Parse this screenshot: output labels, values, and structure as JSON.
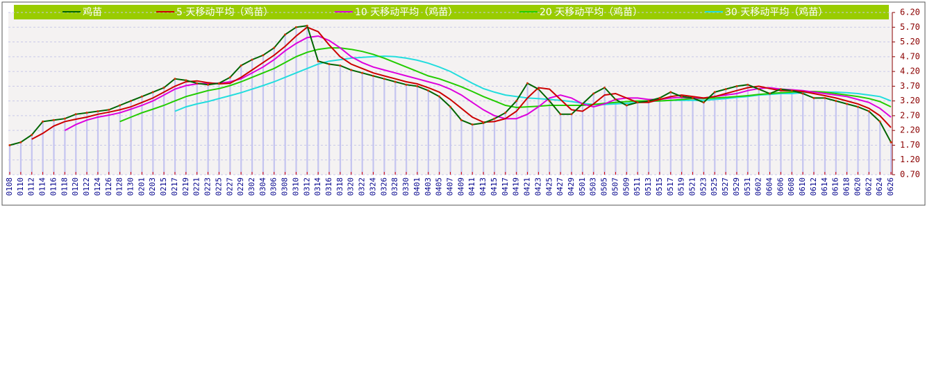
{
  "chart_data": {
    "type": "line",
    "categories": [
      "0108",
      "0110",
      "0112",
      "0114",
      "0116",
      "0118",
      "0120",
      "0122",
      "0124",
      "0126",
      "0128",
      "0130",
      "0201",
      "0203",
      "0215",
      "0217",
      "0219",
      "0221",
      "0223",
      "0225",
      "0227",
      "0229",
      "0302",
      "0304",
      "0306",
      "0308",
      "0310",
      "0312",
      "0314",
      "0316",
      "0318",
      "0320",
      "0322",
      "0324",
      "0326",
      "0328",
      "0330",
      "0401",
      "0403",
      "0405",
      "0407",
      "0409",
      "0411",
      "0413",
      "0415",
      "0417",
      "0419",
      "0421",
      "0423",
      "0425",
      "0427",
      "0429",
      "0501",
      "0503",
      "0505",
      "0507",
      "0509",
      "0511",
      "0513",
      "0515",
      "0517",
      "0519",
      "0521",
      "0523",
      "0525",
      "0527",
      "0529",
      "0531",
      "0602",
      "0604",
      "0606",
      "0608",
      "0610",
      "0612",
      "0614",
      "0616",
      "0618",
      "0620",
      "0622",
      "0624",
      "0626"
    ],
    "series": [
      {
        "name": "鸡苗",
        "color": "#006400",
        "values": [
          1.7,
          1.8,
          2.05,
          2.5,
          2.55,
          2.6,
          2.75,
          2.8,
          2.85,
          2.9,
          3.05,
          3.2,
          3.35,
          3.5,
          3.65,
          3.95,
          3.9,
          3.8,
          3.75,
          3.8,
          4.0,
          4.4,
          4.6,
          4.75,
          5.0,
          5.45,
          5.7,
          5.75,
          4.55,
          4.45,
          4.4,
          4.25,
          4.15,
          4.05,
          3.95,
          3.85,
          3.75,
          3.7,
          3.55,
          3.35,
          3.0,
          2.55,
          2.4,
          2.45,
          2.6,
          2.8,
          3.2,
          3.8,
          3.6,
          3.2,
          2.75,
          2.75,
          3.1,
          3.45,
          3.65,
          3.25,
          3.05,
          3.15,
          3.2,
          3.3,
          3.5,
          3.35,
          3.3,
          3.15,
          3.5,
          3.6,
          3.7,
          3.75,
          3.6,
          3.45,
          3.6,
          3.55,
          3.45,
          3.3,
          3.3,
          3.2,
          3.1,
          3.0,
          2.85,
          2.5,
          1.8
        ]
      },
      {
        "name": "5 天移动平均（鸡苗）",
        "color": "#cc0000",
        "values": [
          null,
          null,
          1.9,
          2.1,
          2.35,
          2.5,
          2.58,
          2.65,
          2.75,
          2.82,
          2.9,
          3.0,
          3.15,
          3.3,
          3.5,
          3.7,
          3.85,
          3.88,
          3.82,
          3.78,
          3.8,
          4.0,
          4.25,
          4.5,
          4.75,
          5.05,
          5.4,
          5.7,
          5.55,
          5.1,
          4.7,
          4.45,
          4.3,
          4.15,
          4.05,
          3.95,
          3.85,
          3.78,
          3.65,
          3.5,
          3.25,
          2.95,
          2.65,
          2.48,
          2.5,
          2.6,
          2.85,
          3.3,
          3.65,
          3.6,
          3.25,
          2.9,
          2.85,
          3.1,
          3.4,
          3.45,
          3.3,
          3.15,
          3.15,
          3.25,
          3.35,
          3.4,
          3.35,
          3.3,
          3.35,
          3.45,
          3.55,
          3.65,
          3.7,
          3.62,
          3.55,
          3.55,
          3.52,
          3.45,
          3.38,
          3.3,
          3.2,
          3.1,
          2.95,
          2.7,
          2.3
        ]
      },
      {
        "name": "10 天移动平均（鸡苗）",
        "color": "#dd00dd",
        "values": [
          null,
          null,
          null,
          null,
          null,
          2.2,
          2.4,
          2.55,
          2.65,
          2.72,
          2.8,
          2.92,
          3.05,
          3.2,
          3.4,
          3.6,
          3.72,
          3.78,
          3.8,
          3.8,
          3.85,
          3.95,
          4.15,
          4.35,
          4.6,
          4.9,
          5.15,
          5.35,
          5.4,
          5.25,
          5.0,
          4.7,
          4.5,
          4.35,
          4.25,
          4.15,
          4.05,
          3.95,
          3.85,
          3.75,
          3.6,
          3.4,
          3.15,
          2.9,
          2.7,
          2.6,
          2.6,
          2.75,
          3.0,
          3.3,
          3.4,
          3.3,
          3.1,
          3.0,
          3.1,
          3.25,
          3.3,
          3.3,
          3.25,
          3.25,
          3.3,
          3.32,
          3.3,
          3.3,
          3.35,
          3.4,
          3.45,
          3.55,
          3.62,
          3.65,
          3.6,
          3.58,
          3.55,
          3.5,
          3.45,
          3.4,
          3.35,
          3.25,
          3.15,
          2.95,
          2.65
        ]
      },
      {
        "name": "20 天移动平均（鸡苗）",
        "color": "#22cc00",
        "values": [
          null,
          null,
          null,
          null,
          null,
          null,
          null,
          null,
          null,
          null,
          2.5,
          2.65,
          2.8,
          2.92,
          3.05,
          3.2,
          3.35,
          3.45,
          3.55,
          3.62,
          3.72,
          3.85,
          4.0,
          4.15,
          4.3,
          4.5,
          4.7,
          4.85,
          4.95,
          5.0,
          5.0,
          4.95,
          4.88,
          4.78,
          4.65,
          4.5,
          4.35,
          4.2,
          4.05,
          3.95,
          3.82,
          3.68,
          3.52,
          3.35,
          3.2,
          3.05,
          2.98,
          3.0,
          3.02,
          3.05,
          3.05,
          3.05,
          3.05,
          3.08,
          3.12,
          3.15,
          3.18,
          3.2,
          3.2,
          3.2,
          3.22,
          3.25,
          3.28,
          3.28,
          3.3,
          3.32,
          3.35,
          3.38,
          3.42,
          3.45,
          3.48,
          3.5,
          3.52,
          3.52,
          3.5,
          3.45,
          3.4,
          3.35,
          3.28,
          3.18,
          3.0
        ]
      },
      {
        "name": "30 天移动平均（鸡苗）",
        "color": "#22dddd",
        "values": [
          null,
          null,
          null,
          null,
          null,
          null,
          null,
          null,
          null,
          null,
          null,
          null,
          null,
          null,
          null,
          2.85,
          3.0,
          3.1,
          3.18,
          3.28,
          3.38,
          3.48,
          3.6,
          3.72,
          3.85,
          4.0,
          4.15,
          4.3,
          4.45,
          4.55,
          4.6,
          4.65,
          4.68,
          4.7,
          4.72,
          4.7,
          4.65,
          4.58,
          4.48,
          4.35,
          4.2,
          4.0,
          3.8,
          3.62,
          3.5,
          3.4,
          3.35,
          3.3,
          3.28,
          3.25,
          3.22,
          3.18,
          3.12,
          3.08,
          3.08,
          3.1,
          3.12,
          3.15,
          3.18,
          3.2,
          3.22,
          3.22,
          3.22,
          3.22,
          3.25,
          3.28,
          3.32,
          3.35,
          3.4,
          3.42,
          3.45,
          3.45,
          3.48,
          3.5,
          3.5,
          3.5,
          3.48,
          3.45,
          3.4,
          3.35,
          3.2
        ]
      }
    ],
    "ylim": [
      0.7,
      6.2
    ],
    "yticks": [
      {
        "value": 0.7,
        "label": "0.70"
      },
      {
        "value": 1.2,
        "label": "1.20"
      },
      {
        "value": 1.7,
        "label": "1.70"
      },
      {
        "value": 2.2,
        "label": "2.20"
      },
      {
        "value": 2.7,
        "label": "2.70"
      },
      {
        "value": 3.2,
        "label": "3.20"
      },
      {
        "value": 3.7,
        "label": "3.70"
      },
      {
        "value": 4.2,
        "label": "4.20"
      },
      {
        "value": 4.7,
        "label": "4.70"
      },
      {
        "value": 5.2,
        "label": "5.20"
      },
      {
        "value": 5.7,
        "label": "5.70"
      },
      {
        "value": 6.2,
        "label": "6.20"
      }
    ],
    "grid": true,
    "bar_color": "#c4c4f0"
  }
}
